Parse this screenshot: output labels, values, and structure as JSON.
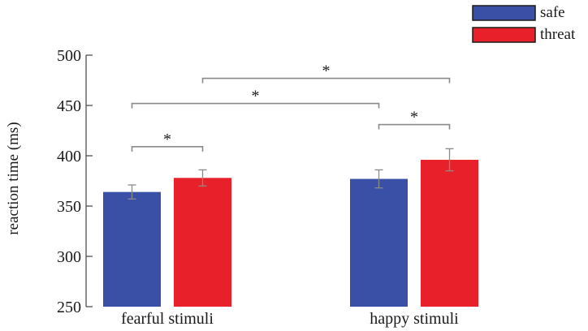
{
  "chart_data": {
    "type": "bar",
    "title": "",
    "xlabel": "",
    "ylabel": "reaction time (ms)",
    "ylim": [
      250,
      500
    ],
    "yticks": [
      250,
      300,
      350,
      400,
      450,
      500
    ],
    "categories": [
      "fearful stimuli",
      "happy stimuli"
    ],
    "series": [
      {
        "name": "safe",
        "color": "#3a4fa6",
        "values": [
          364,
          377
        ],
        "errors": [
          7,
          9
        ]
      },
      {
        "name": "threat",
        "color": "#e8202a",
        "values": [
          378,
          396
        ],
        "errors": [
          8,
          11
        ]
      }
    ],
    "grid": false,
    "legend_position": "top-right",
    "significance": [
      {
        "label": "*",
        "from": "fearful stimuli safe",
        "to": "fearful stimuli threat",
        "y": 409
      },
      {
        "label": "*",
        "from": "happy stimuli safe",
        "to": "happy stimuli threat",
        "y": 431
      },
      {
        "label": "*",
        "from": "fearful stimuli safe",
        "to": "happy stimuli safe",
        "y": 452
      },
      {
        "label": "*",
        "from": "fearful stimuli threat",
        "to": "happy stimuli threat",
        "y": 477
      }
    ]
  }
}
